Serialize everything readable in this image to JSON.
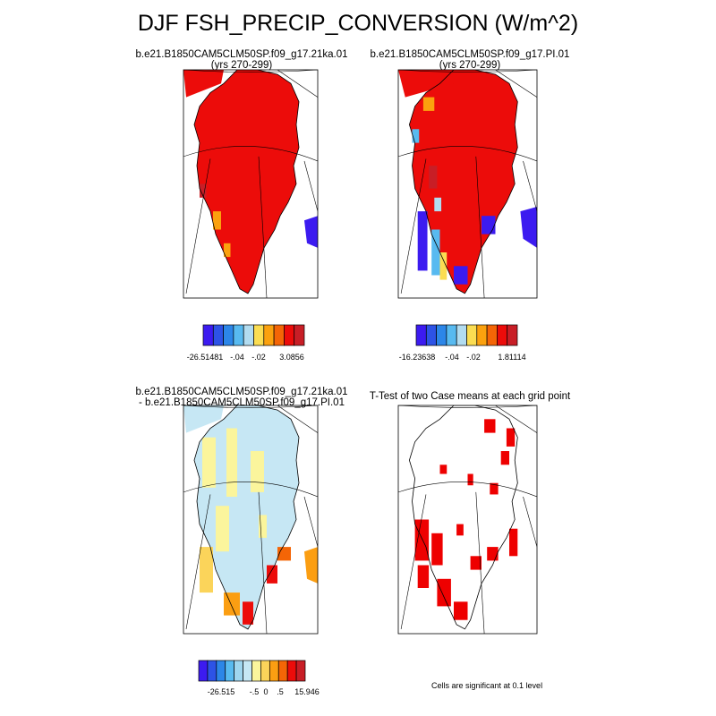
{
  "figure": {
    "title": "DJF FSH_PRECIP_CONVERSION (W/m^2)",
    "note": "Cells are significant at 0.1 level"
  },
  "colors": {
    "case_scale": [
      "#3c1bf0",
      "#2d53e6",
      "#2c86e8",
      "#58baf0",
      "#b2dcf0",
      "#fbdd52",
      "#fba10e",
      "#f46506",
      "#ec0c0a",
      "#c81e26"
    ],
    "diff_scale": [
      "#3c1bf0",
      "#2d53e6",
      "#2c86e8",
      "#58baf0",
      "#9fd6ef",
      "#c6e7f4",
      "#fbf59c",
      "#fbd45a",
      "#fb9e12",
      "#f46506",
      "#ec0c0a",
      "#c81e26"
    ],
    "ttest": "#ee0000",
    "coast": "#000000",
    "graticule": "#000000"
  },
  "chart_data": [
    {
      "type": "heatmap",
      "panel": "case1",
      "title_lines": [
        "b.e21.B1850CAM5CLM50SP.f09_g17.21ka.01",
        "(yrs 270-299)"
      ],
      "colorbar": {
        "labels": [
          "-26.51481",
          "-.04",
          "-.02",
          "3.0856"
        ],
        "min": -26.51481,
        "max": 3.0856,
        "levels": [
          -26.51481,
          -0.1,
          -0.06,
          -0.04,
          -0.02,
          0,
          0.02,
          0.04,
          0.06,
          0.1,
          3.0856
        ]
      },
      "dominant_values": "mostly red (positive) over the ice sheet interior"
    },
    {
      "type": "heatmap",
      "panel": "case2",
      "title_lines": [
        "b.e21.B1850CAM5CLM50SP.f09_g17.PI.01",
        "(yrs 270-299)"
      ],
      "colorbar": {
        "labels": [
          "-16.23638",
          "-.04",
          "-.02",
          "1.81114"
        ],
        "min": -16.23638,
        "max": 1.81114,
        "levels": [
          -16.23638,
          -0.1,
          -0.06,
          -0.04,
          -0.02,
          0,
          0.02,
          0.04,
          0.06,
          0.1,
          1.81114
        ]
      },
      "dominant_values": "red interior, negative (blue) values along the southern margin"
    },
    {
      "type": "heatmap",
      "panel": "difference",
      "title_lines": [
        "b.e21.B1850CAM5CLM50SP.f09_g17.21ka.01",
        "- b.e21.B1850CAM5CLM50SP.f09_g17.PI.01"
      ],
      "colorbar": {
        "labels": [
          "-26.515",
          "-.5",
          "0",
          ".5",
          "15.946"
        ],
        "min": -26.515,
        "max": 15.946,
        "levels": [
          -26.515,
          -2,
          -1,
          -0.5,
          -0.25,
          -0.1,
          0,
          0.1,
          0.25,
          0.5,
          1,
          2,
          15.946
        ]
      },
      "dominant_values": "light blue and pale yellow (near zero) over most of the interior, red/orange along the southern coast"
    },
    {
      "type": "heatmap",
      "panel": "ttest",
      "title_lines": [
        "T-Test of two Case means at each grid point"
      ],
      "significance_level": 0.1,
      "dominant_values": "scattered significant cells, dense along the south and west margins"
    }
  ]
}
